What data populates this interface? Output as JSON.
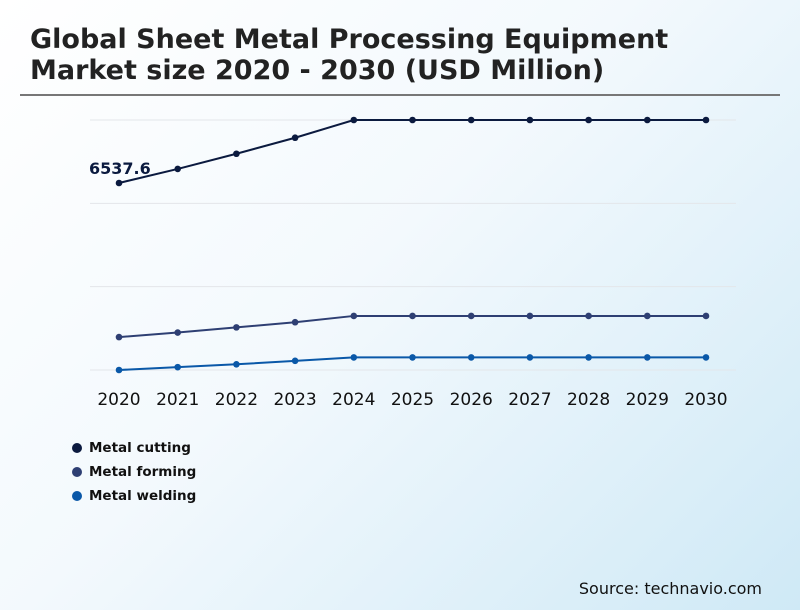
{
  "title_line1": "Global Sheet Metal Processing Equipment",
  "title_line2": "Market size 2020 - 2030 (USD Million)",
  "source": "Source: technavio.com",
  "chart_data": {
    "type": "line",
    "categories": [
      "2020",
      "2021",
      "2022",
      "2023",
      "2024",
      "2025",
      "2026",
      "2027",
      "2028",
      "2029",
      "2030"
    ],
    "ylim": [
      0,
      8740
    ],
    "grid": true,
    "legend_position": "bottom-left",
    "annotation": {
      "series": "Metal cutting",
      "category": "2020",
      "text": "6537.6"
    },
    "series": [
      {
        "name": "Metal cutting",
        "color": "#0b1a3f",
        "values": [
          6537.6,
          7030,
          7560,
          8120,
          8740,
          8740,
          8740,
          8740,
          8740,
          8740,
          8740
        ]
      },
      {
        "name": "Metal forming",
        "color": "#2e3f73",
        "values": [
          1150,
          1310,
          1490,
          1670,
          1890,
          1890,
          1890,
          1890,
          1890,
          1890,
          1890
        ]
      },
      {
        "name": "Metal welding",
        "color": "#0a58a8",
        "values": [
          0,
          100,
          200,
          320,
          440,
          440,
          440,
          440,
          440,
          440,
          440
        ]
      }
    ]
  }
}
